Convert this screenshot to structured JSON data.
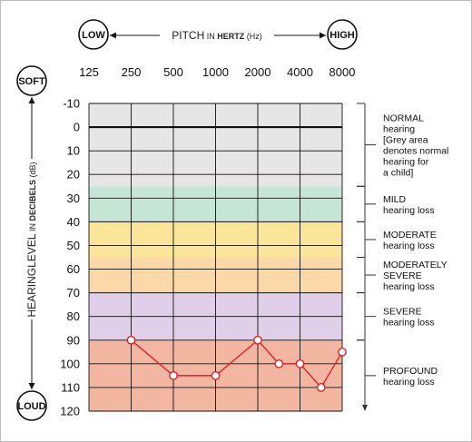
{
  "chart_data": {
    "type": "line",
    "x_axis": {
      "label_prefix": "PITCH",
      "label_mid": " IN ",
      "label_unit": "HERTZ",
      "label_suffix": " (Hz)",
      "low_label": "LOW",
      "high_label": "HIGH",
      "tick_labels": [
        "125",
        "250",
        "500",
        "1000",
        "2000",
        "4000",
        "8000"
      ],
      "ticks": [
        125,
        250,
        500,
        1000,
        2000,
        4000,
        8000
      ],
      "scale": "log2",
      "xlim": [
        125,
        8000
      ]
    },
    "y_axis": {
      "label_prefix": "HEARINGLEVEL",
      "label_mid": " IN ",
      "label_unit": "DECIBELS",
      "label_suffix": " (dB)",
      "soft_label": "SOFT",
      "loud_label": "LOUD",
      "tick_labels": [
        "-10",
        "0",
        "10",
        "20",
        "30",
        "40",
        "50",
        "60",
        "70",
        "80",
        "90",
        "100",
        "110",
        "120"
      ],
      "ticks": [
        -10,
        0,
        10,
        20,
        30,
        40,
        50,
        60,
        70,
        80,
        90,
        100,
        110,
        120
      ],
      "ylim": [
        -10,
        120
      ],
      "inverted": true
    },
    "bands": [
      {
        "name": "normal",
        "from": -10,
        "to": 25,
        "color": "#e6e6e6",
        "label_lines": [
          "NORMAL",
          "hearing",
          "[Grey area",
          "denotes normal",
          "hearing for",
          "a child]"
        ]
      },
      {
        "name": "mild",
        "from": 25,
        "to": 40,
        "color": "#c5e6d6",
        "label_lines": [
          "MILD",
          "hearing loss"
        ]
      },
      {
        "name": "moderate",
        "from": 40,
        "to": 55,
        "color": "#fbe599",
        "label_lines": [
          "MODERATE",
          "hearing loss"
        ]
      },
      {
        "name": "moderately-severe",
        "from": 55,
        "to": 70,
        "color": "#fbd8a8",
        "label_lines": [
          "MODERATELY",
          "SEVERE",
          "hearing loss"
        ]
      },
      {
        "name": "severe",
        "from": 70,
        "to": 90,
        "color": "#dfcfe8",
        "label_lines": [
          "SEVERE",
          "hearing loss"
        ]
      },
      {
        "name": "profound",
        "from": 90,
        "to": 120,
        "color": "#f3b7a1",
        "label_lines": [
          "PROFOUND",
          "hearing loss"
        ]
      }
    ],
    "series": [
      {
        "color": "#e0202a",
        "points": [
          {
            "x": 250,
            "y": 90
          },
          {
            "x": 500,
            "y": 105
          },
          {
            "x": 1000,
            "y": 105
          },
          {
            "x": 2000,
            "y": 90
          },
          {
            "x": 2828,
            "y": 100
          },
          {
            "x": 4000,
            "y": 100
          },
          {
            "x": 5657,
            "y": 110
          },
          {
            "x": 8000,
            "y": 95
          }
        ]
      }
    ],
    "grid": true
  }
}
